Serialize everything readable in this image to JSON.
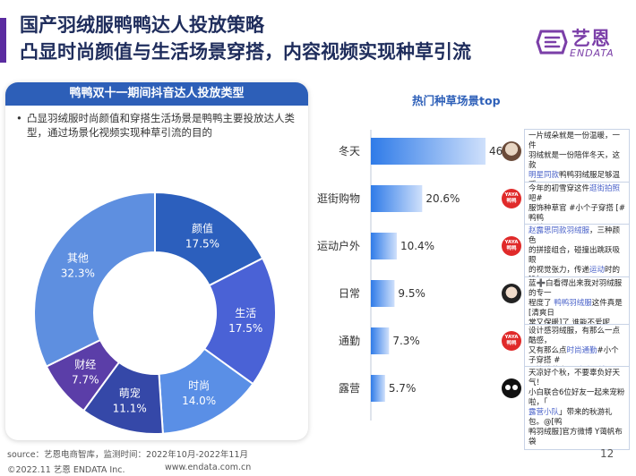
{
  "header": {
    "title_line1": "国产羽绒服鸭鸭达人投放策略",
    "title_line2": "凸显时尚颜值与生活场景穿搭，内容视频实现种草引流",
    "accent_color": "#5b2ca0",
    "title_color": "#1f2d5c"
  },
  "logo": {
    "cn": "艺恩",
    "en": "ENDATA",
    "icon": "endata-logo-icon",
    "color": "#7b3fa8"
  },
  "left_panel": {
    "heading": "鸭鸭双十一期间抖音达人投放类型",
    "bullet": "凸显羽绒服时尚颜值和穿搭生活场景是鸭鸭主要投放达人类型，通过场景化视频实现种草引流的目的"
  },
  "right_panel": {
    "heading": "热门种草场景top"
  },
  "chart_data": [
    {
      "type": "pie",
      "subtype": "donut",
      "title": "鸭鸭双十一期间抖音达人投放类型",
      "labels": [
        "颜值",
        "生活",
        "时尚",
        "萌宠",
        "财经",
        "其他"
      ],
      "values": [
        17.5,
        17.5,
        14.0,
        11.1,
        7.7,
        32.3
      ],
      "value_labels": [
        "17.5%",
        "17.5%",
        "14.0%",
        "11.1%",
        "7.7%",
        "32.3%"
      ],
      "colors": [
        "#2c5fbd",
        "#4a62d6",
        "#5a8fe6",
        "#3548a8",
        "#5b3ea8",
        "#5e8fe0"
      ],
      "legend": "none (labels on slices)"
    },
    {
      "type": "bar",
      "orientation": "horizontal",
      "title": "热门种草场景top",
      "categories": [
        "冬天",
        "逛街购物",
        "运动户外",
        "日常",
        "通勤",
        "露营"
      ],
      "values": [
        46.0,
        20.6,
        10.4,
        9.5,
        7.3,
        5.7
      ],
      "value_labels": [
        "46.",
        "20.6%",
        "10.4%",
        "9.5%",
        "7.3%",
        "5.7%"
      ],
      "xlim": [
        0,
        46.0
      ],
      "bar_color_start": "#cfe0fb",
      "bar_color_end": "#2f7be8",
      "grid": false
    }
  ],
  "comments": [
    {
      "icon": "avatar-person-icon",
      "lines": [
        "一片绒朵就是一份温暖，一件",
        "羽绒就是一份陪伴冬天，这款",
        "[明星同款]鸭鸭羽绒服足够温暖",
        "你整个[冬天]#鸭鸭羽绒服"
      ]
    },
    {
      "icon": "yaya-brand-icon",
      "lines": [
        "今年的初雪穿这件[逛街拍照]吧#",
        "服饰种草官 #小个子穿搭 [#鸭鸭",
        "羽绒服]"
      ]
    },
    {
      "icon": "yaya-brand-icon",
      "lines": [
        "[赵露思同款羽绒服]，三种颜色",
        "的拼接组合，碰撞出跳跃吸眼",
        "的视觉张力，传递[运动]时的[时",
        "髦新姿态]"
      ]
    },
    {
      "icon": "avatar-person-icon",
      "lines": [
        "蓝➕白看得出来我对羽绒服的专一",
        "程度了 [鸭鸭羽绒服]这件真是[清爽日",
        "常又保暖]了 谁能不爱呢"
      ]
    },
    {
      "icon": "yaya-brand-icon",
      "lines": [
        "设计感羽绒服，有那么一点酷感，",
        "又有那么点[时尚通勤]#小个子穿搭 #",
        "服饰种草官 [#鸭鸭羽绒服]"
      ]
    },
    {
      "icon": "avatar-cartoon-icon",
      "lines": [
        "天凉好个秋，不要辜负好天气！",
        "小白联合6位好友一起来宠粉啦，「",
        "[露营小队]」带来的秋游礼包。@[鸭",
        "鸭羽绒服]官方微博 Y蔼帆布袋"
      ]
    }
  ],
  "avatar_badge": {
    "text": "YAYA\n鸭鸭",
    "color": "#e02a2a"
  },
  "footer": {
    "source": "source：艺恩电商智库，监测时间：2022年10月-2022年11月",
    "copyright": "©2022.11 艺恩 ENDATA Inc.",
    "website": "www.endata.com.cn",
    "page": "12"
  }
}
